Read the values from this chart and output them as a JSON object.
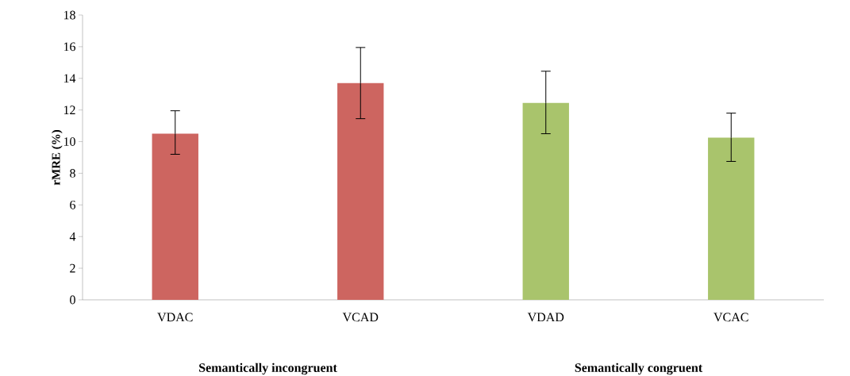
{
  "chart_data": {
    "type": "bar",
    "ylabel": "rMRE (%)",
    "categories": [
      "VDAC",
      "VCAD",
      "VDAD",
      "VCAC"
    ],
    "values": [
      10.5,
      13.7,
      12.45,
      10.25
    ],
    "colors": [
      "#cd6560",
      "#cd6560",
      "#a9c46c",
      "#a9c46c"
    ],
    "errors": [
      [
        9.2,
        11.95
      ],
      [
        11.45,
        15.95
      ],
      [
        10.5,
        14.45
      ],
      [
        8.75,
        11.8
      ]
    ],
    "ylim": [
      0,
      18
    ],
    "yticks": [
      0,
      2,
      4,
      6,
      8,
      10,
      12,
      14,
      16,
      18
    ],
    "grid": false,
    "annotations": [
      "Semantically incongruent",
      "Semantically congruent"
    ]
  }
}
